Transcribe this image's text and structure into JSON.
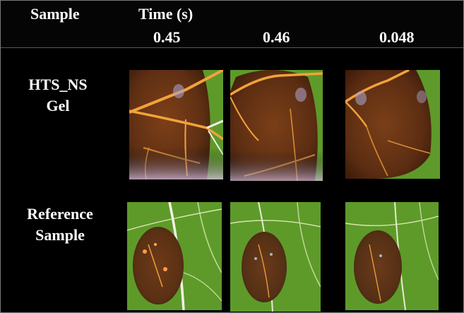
{
  "header": {
    "sample_col": "Sample",
    "time_col": "Time (s)",
    "times": [
      "0.45",
      "0.46",
      "0.048"
    ]
  },
  "rows": [
    {
      "label_line1": "HTS_NS",
      "label_line2": "Gel"
    },
    {
      "label_line1": "Reference",
      "label_line2": "Sample"
    }
  ],
  "colors": {
    "leaf_green": "#5e9a2a",
    "droplet_brown": "#6b3414",
    "vein_orange": "#f3a23c",
    "vein_white": "#f2f2e6"
  }
}
